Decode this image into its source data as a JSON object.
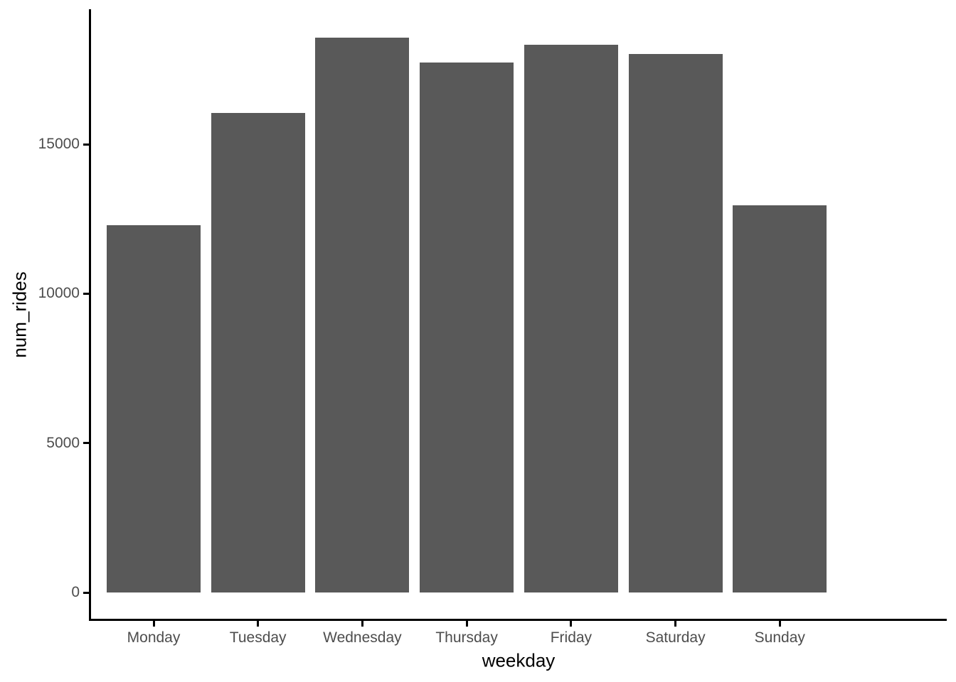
{
  "chart_data": {
    "type": "bar",
    "categories": [
      "Monday",
      "Tuesday",
      "Wednesday",
      "Thursday",
      "Friday",
      "Saturday",
      "Sunday"
    ],
    "values": [
      12290,
      16045,
      18565,
      17735,
      18330,
      18020,
      12955
    ],
    "series_name": "num_rides",
    "title": "",
    "xlabel": "weekday",
    "ylabel": "num_rides",
    "yticks": [
      0,
      5000,
      10000,
      15000
    ],
    "ylim": [
      0,
      19500
    ],
    "grid": false,
    "legend": false,
    "legend_position": "none",
    "bar_color": "#595959",
    "axis_line_color": "#000000",
    "tick_label_color": "#4D4D4D",
    "axis_title_color": "#000000",
    "background_color": "#FFFFFF"
  }
}
